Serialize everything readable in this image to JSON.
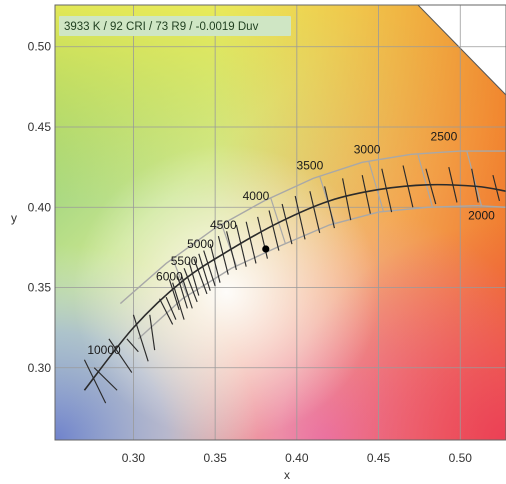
{
  "chart_data": {
    "type": "scatter",
    "title": "",
    "annotation": "3933 K / 92 CRI / 73 R9 / -0.0019 Duv",
    "xlabel": "x",
    "ylabel": "y",
    "xlim": [
      0.252,
      0.528
    ],
    "ylim": [
      0.255,
      0.526
    ],
    "grid": true,
    "x_ticks": [
      0.3,
      0.35,
      0.4,
      0.45,
      0.5
    ],
    "x_tick_labels": [
      "0.30",
      "0.35",
      "0.40",
      "0.45",
      "0.50"
    ],
    "y_ticks": [
      0.3,
      0.35,
      0.4,
      0.45,
      0.5
    ],
    "y_tick_labels": [
      "0.30",
      "0.35",
      "0.40",
      "0.45",
      "0.50"
    ],
    "point": {
      "x": 0.381,
      "y": 0.374
    },
    "cct_labels": [
      {
        "text": "10000",
        "x": 0.282,
        "y": 0.3085
      },
      {
        "text": "6000",
        "x": 0.322,
        "y": 0.3545
      },
      {
        "text": "5500",
        "x": 0.331,
        "y": 0.364
      },
      {
        "text": "5000",
        "x": 0.341,
        "y": 0.3745
      },
      {
        "text": "4500",
        "x": 0.355,
        "y": 0.3865
      },
      {
        "text": "4000",
        "x": 0.375,
        "y": 0.4045
      },
      {
        "text": "3500",
        "x": 0.408,
        "y": 0.4235
      },
      {
        "text": "3000",
        "x": 0.443,
        "y": 0.4335
      },
      {
        "text": "2500",
        "x": 0.49,
        "y": 0.4415
      },
      {
        "text": "2000",
        "x": 0.513,
        "y": 0.3925
      }
    ],
    "locus": {
      "x": [
        0.27,
        0.3,
        0.33,
        0.36,
        0.39,
        0.42,
        0.45,
        0.48,
        0.51,
        0.528
      ],
      "y": [
        0.286,
        0.325,
        0.354,
        0.374,
        0.391,
        0.404,
        0.411,
        0.414,
        0.413,
        0.41
      ]
    },
    "isotemp_lines": [
      [
        0.27,
        0.305,
        0.283,
        0.278
      ],
      [
        0.276,
        0.3,
        0.29,
        0.286
      ],
      [
        0.285,
        0.318,
        0.299,
        0.297
      ],
      [
        0.296,
        0.318,
        0.303,
        0.31
      ],
      [
        0.3,
        0.333,
        0.309,
        0.304
      ],
      [
        0.31,
        0.333,
        0.313,
        0.311
      ],
      [
        0.316,
        0.343,
        0.324,
        0.327
      ],
      [
        0.32,
        0.344,
        0.326,
        0.33
      ],
      [
        0.322,
        0.355,
        0.328,
        0.336
      ],
      [
        0.324,
        0.353,
        0.331,
        0.33
      ],
      [
        0.327,
        0.357,
        0.333,
        0.337
      ],
      [
        0.329,
        0.359,
        0.336,
        0.337
      ],
      [
        0.331,
        0.362,
        0.339,
        0.341
      ],
      [
        0.334,
        0.366,
        0.34,
        0.345
      ],
      [
        0.337,
        0.368,
        0.345,
        0.346
      ],
      [
        0.34,
        0.371,
        0.347,
        0.348
      ],
      [
        0.343,
        0.373,
        0.35,
        0.351
      ],
      [
        0.347,
        0.377,
        0.353,
        0.353
      ],
      [
        0.352,
        0.382,
        0.358,
        0.358
      ],
      [
        0.357,
        0.385,
        0.363,
        0.361
      ],
      [
        0.363,
        0.389,
        0.369,
        0.363
      ],
      [
        0.369,
        0.391,
        0.375,
        0.365
      ],
      [
        0.376,
        0.394,
        0.382,
        0.368
      ],
      [
        0.383,
        0.398,
        0.389,
        0.373
      ],
      [
        0.391,
        0.402,
        0.397,
        0.377
      ],
      [
        0.399,
        0.407,
        0.405,
        0.38
      ],
      [
        0.408,
        0.41,
        0.414,
        0.384
      ],
      [
        0.417,
        0.413,
        0.423,
        0.387
      ],
      [
        0.428,
        0.418,
        0.433,
        0.392
      ],
      [
        0.44,
        0.42,
        0.445,
        0.396
      ],
      [
        0.452,
        0.424,
        0.458,
        0.397
      ],
      [
        0.465,
        0.426,
        0.471,
        0.4
      ],
      [
        0.479,
        0.424,
        0.485,
        0.402
      ],
      [
        0.493,
        0.425,
        0.498,
        0.403
      ],
      [
        0.507,
        0.424,
        0.511,
        0.403
      ],
      [
        0.52,
        0.42,
        0.524,
        0.404
      ]
    ],
    "tolerance_band": {
      "upper": {
        "x": [
          0.292,
          0.32,
          0.35,
          0.38,
          0.41,
          0.44,
          0.47,
          0.5,
          0.528
        ],
        "y": [
          0.34,
          0.365,
          0.387,
          0.404,
          0.418,
          0.428,
          0.433,
          0.435,
          0.435
        ]
      },
      "lower": {
        "x": [
          0.303,
          0.33,
          0.36,
          0.39,
          0.42,
          0.45,
          0.48,
          0.51,
          0.528
        ],
        "y": [
          0.318,
          0.343,
          0.362,
          0.376,
          0.389,
          0.397,
          0.4,
          0.401,
          0.4
        ]
      },
      "dividers_x": [
        0.33,
        0.36,
        0.39,
        0.42,
        0.45,
        0.48,
        0.51
      ]
    },
    "colors": {
      "locus": "#2b2b2b",
      "isotemp": "#2b2b2b",
      "band": "#a8a8a8",
      "point": "#000000",
      "grid": "#9a9a9a",
      "badge_bg": "#cfe6c4"
    }
  }
}
